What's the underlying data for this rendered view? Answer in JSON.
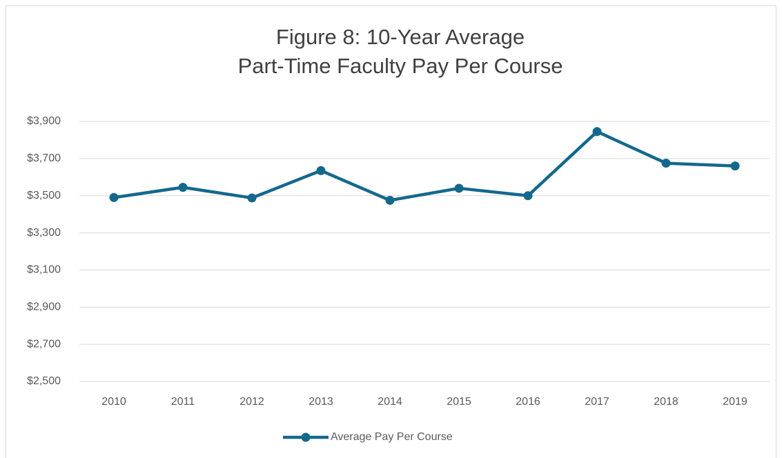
{
  "chart_data": {
    "type": "line",
    "title": [
      "Figure 8: 10-Year Average",
      "Part-Time Faculty Pay Per Course"
    ],
    "categories": [
      "2010",
      "2011",
      "2012",
      "2013",
      "2014",
      "2015",
      "2016",
      "2017",
      "2018",
      "2019"
    ],
    "series": [
      {
        "name": "Average Pay Per Course",
        "color": "#14688c",
        "values": [
          3490,
          3545,
          3488,
          3635,
          3475,
          3540,
          3500,
          3845,
          3675,
          3660
        ]
      }
    ],
    "ylim": [
      2500,
      3900
    ],
    "yticks": [
      {
        "value": 2500,
        "label": "$2,500"
      },
      {
        "value": 2700,
        "label": "$2,700"
      },
      {
        "value": 2900,
        "label": "$2,900"
      },
      {
        "value": 3100,
        "label": "$3,100"
      },
      {
        "value": 3300,
        "label": "$3,300"
      },
      {
        "value": 3500,
        "label": "$3,500"
      },
      {
        "value": 3700,
        "label": "$3,700"
      },
      {
        "value": 3900,
        "label": "$3,900"
      }
    ],
    "grid": true,
    "legend": "bottom"
  }
}
